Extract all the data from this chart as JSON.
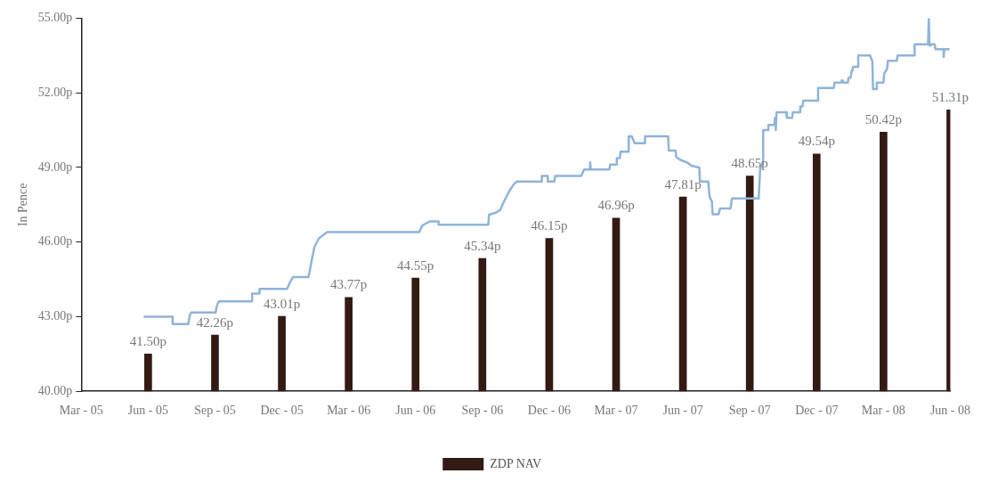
{
  "chart_data": {
    "type": "line",
    "ylabel": "In Pence",
    "legend": "bottom",
    "xlim": [
      "2005-03",
      "2008-06"
    ],
    "xticks": [
      {
        "value": "2005-03",
        "label": "Mar - 05"
      },
      {
        "value": "2005-06",
        "label": "Jun - 05"
      },
      {
        "value": "2005-09",
        "label": "Sep - 05"
      },
      {
        "value": "2005-12",
        "label": "Dec - 05"
      },
      {
        "value": "2006-03",
        "label": "Mar - 06"
      },
      {
        "value": "2006-06",
        "label": "Jun - 06"
      },
      {
        "value": "2006-09",
        "label": "Sep - 06"
      },
      {
        "value": "2006-12",
        "label": "Dec - 06"
      },
      {
        "value": "2007-03",
        "label": "Mar - 07"
      },
      {
        "value": "2007-06",
        "label": "Jun - 07"
      },
      {
        "value": "2007-09",
        "label": "Sep - 07"
      },
      {
        "value": "2007-12",
        "label": "Dec - 07"
      },
      {
        "value": "2008-03",
        "label": "Mar - 08"
      },
      {
        "value": "2008-06",
        "label": "Jun - 08"
      }
    ],
    "ylim": [
      40,
      55
    ],
    "yticks": [
      {
        "value": 40,
        "label": "40.00p"
      },
      {
        "value": 43,
        "label": "43.00p"
      },
      {
        "value": 46,
        "label": "46.00p"
      },
      {
        "value": 49,
        "label": "49.00p"
      },
      {
        "value": 52,
        "label": "52.00p"
      },
      {
        "value": 55,
        "label": "55.00p"
      }
    ],
    "series": [
      {
        "type": "bar",
        "name": "ZDP NAV",
        "color": "#331a12",
        "x": [
          "2005-06",
          "2005-09",
          "2005-12",
          "2006-03",
          "2006-06",
          "2006-09",
          "2006-12",
          "2007-03",
          "2007-06",
          "2007-09",
          "2007-12",
          "2008-03",
          "2008-06"
        ],
        "values": [
          41.5,
          42.26,
          43.01,
          43.77,
          44.55,
          45.34,
          46.15,
          46.96,
          47.81,
          48.65,
          49.54,
          50.42,
          51.31
        ],
        "value_labels": [
          "41.50p",
          "42.26p",
          "43.01p",
          "43.77p",
          "44.55p",
          "45.34p",
          "46.15p",
          "46.96p",
          "47.81p",
          "48.65p",
          "49.54p",
          "50.42p",
          "51.31p"
        ]
      },
      {
        "color": "#8fb4d8",
        "x": [
          "2005-05-25",
          "2005-07-04",
          "2005-07-04",
          "2005-07-25",
          "2005-07-27",
          "2005-07-29",
          "2005-09-02",
          "2005-09-03",
          "2005-09-06",
          "2005-10-21",
          "2005-10-21",
          "2005-11-01",
          "2005-11-01",
          "2005-12-08",
          "2005-12-12",
          "2005-12-16",
          "2006-01-07",
          "2006-01-11",
          "2006-01-15",
          "2006-01-21",
          "2006-02-02",
          "2006-06-06",
          "2006-06-10",
          "2006-06-20",
          "2006-07-02",
          "2006-07-02",
          "2006-09-09",
          "2006-09-10",
          "2006-09-19",
          "2006-09-25",
          "2006-10-01",
          "2006-10-07",
          "2006-10-13",
          "2006-10-17",
          "2006-11-21",
          "2006-11-21",
          "2006-11-29",
          "2006-11-29",
          "2006-12-08",
          "2006-12-09",
          "2007-01-14",
          "2007-01-18",
          "2007-01-26",
          "2007-01-26",
          "2007-01-27",
          "2007-02-22",
          "2007-02-23",
          "2007-03-01",
          "2007-03-02",
          "2007-03-06",
          "2007-03-07",
          "2007-03-18",
          "2007-03-18",
          "2007-03-22",
          "2007-03-26",
          "2007-04-10",
          "2007-04-10",
          "2007-05-11",
          "2007-05-12",
          "2007-05-21",
          "2007-05-22",
          "2007-05-27",
          "2007-06-07",
          "2007-06-13",
          "2007-06-23",
          "2007-06-24",
          "2007-07-05",
          "2007-07-07",
          "2007-07-10",
          "2007-07-11",
          "2007-07-19",
          "2007-07-21",
          "2007-08-05",
          "2007-08-07",
          "2007-09-13",
          "2007-09-15",
          "2007-09-19",
          "2007-09-19",
          "2007-09-26",
          "2007-09-26",
          "2007-10-04",
          "2007-10-05",
          "2007-10-06",
          "2007-10-06",
          "2007-10-07",
          "2007-10-20",
          "2007-10-21",
          "2007-10-28",
          "2007-10-29",
          "2007-11-08",
          "2007-11-09",
          "2007-11-12",
          "2007-11-13",
          "2007-12-03",
          "2007-12-03",
          "2007-12-24",
          "2007-12-25",
          "2008-01-04",
          "2008-01-05",
          "2008-01-06",
          "2008-01-07",
          "2008-01-13",
          "2008-01-14",
          "2008-01-17",
          "2008-01-18",
          "2008-01-19",
          "2008-01-20",
          "2008-01-27",
          "2008-01-27",
          "2008-02-13",
          "2008-02-16",
          "2008-02-17",
          "2008-02-21",
          "2008-02-22",
          "2008-03-01",
          "2008-03-02",
          "2008-03-06",
          "2008-03-07",
          "2008-03-19",
          "2008-03-20",
          "2008-04-13",
          "2008-04-13",
          "2008-05-01",
          "2008-05-02",
          "2008-05-03",
          "2008-05-04",
          "2008-05-10",
          "2008-05-11",
          "2008-05-22",
          "2008-05-22",
          "2008-05-23",
          "2008-05-30"
        ],
        "values": [
          43.0,
          43.0,
          42.7,
          42.7,
          43.04,
          43.17,
          43.17,
          43.38,
          43.62,
          43.62,
          43.93,
          43.93,
          44.12,
          44.12,
          44.38,
          44.59,
          44.59,
          45.24,
          45.81,
          46.15,
          46.4,
          46.4,
          46.66,
          46.83,
          46.83,
          46.7,
          46.7,
          47.1,
          47.18,
          47.29,
          47.69,
          48.03,
          48.31,
          48.43,
          48.43,
          48.66,
          48.66,
          48.43,
          48.43,
          48.66,
          48.66,
          48.92,
          48.92,
          49.2,
          48.92,
          48.92,
          49.11,
          49.11,
          49.37,
          49.37,
          49.63,
          49.63,
          50.25,
          50.25,
          49.97,
          49.97,
          50.25,
          50.25,
          49.68,
          49.68,
          49.42,
          49.31,
          49.19,
          49.06,
          49.0,
          48.43,
          48.43,
          47.8,
          47.63,
          47.12,
          47.12,
          47.35,
          47.35,
          47.75,
          47.75,
          48.94,
          49.23,
          50.5,
          50.5,
          50.71,
          50.71,
          50.99,
          50.99,
          50.5,
          51.22,
          51.22,
          50.99,
          50.99,
          51.22,
          51.22,
          51.45,
          51.45,
          51.68,
          51.68,
          52.19,
          52.19,
          52.41,
          52.41,
          52.5,
          52.5,
          52.41,
          52.41,
          52.61,
          52.61,
          52.87,
          52.87,
          53.04,
          53.04,
          53.5,
          53.5,
          53.27,
          52.15,
          52.15,
          52.41,
          52.41,
          52.76,
          52.98,
          53.29,
          53.29,
          53.5,
          53.5,
          53.95,
          53.95,
          55.0,
          53.9,
          53.95,
          53.95,
          53.75,
          53.75,
          53.44,
          53.75,
          53.75
        ]
      }
    ]
  }
}
